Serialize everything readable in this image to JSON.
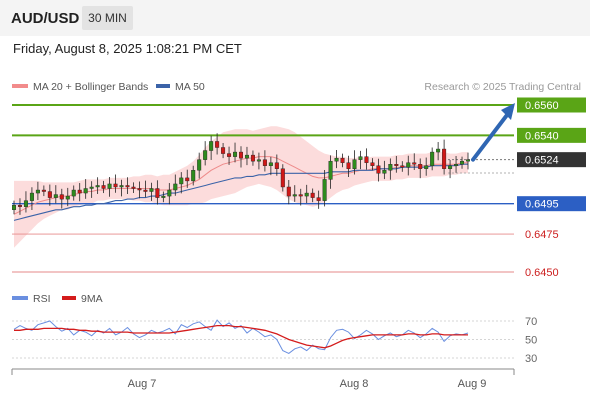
{
  "header": {
    "symbol": "AUD/USD",
    "timeframe": "30 MIN"
  },
  "datetime": "Friday, August 8, 2025 1:08:21 PM CET",
  "legend": {
    "bollinger": {
      "label": "MA 20 + Bollinger Bands",
      "color": "#f28b8b"
    },
    "ma50": {
      "label": "MA 50",
      "color": "#3b63a8"
    }
  },
  "copyright": "Research © 2025 Trading Central",
  "colors": {
    "resistance": "#5aa516",
    "support": "#2c5fc4",
    "minor_support": "#e68a8a",
    "candle_up": "#2e8b1e",
    "candle_down": "#d01818",
    "band_fill": "#fbd6d6",
    "current": "#333333",
    "arrow": "#2f66b3",
    "rsi": "#6a8fe0",
    "rsi_ma": "#d41c1c"
  },
  "chart_data": [
    {
      "type": "line",
      "subtype": "candlestick-with-levels",
      "title": "AUD/USD",
      "x_tick_labels": [
        "Aug 7",
        "Aug 8",
        "Aug 9"
      ],
      "ylim": [
        0.644,
        0.6565
      ],
      "levels": [
        {
          "value": 0.656,
          "label": "0.6560",
          "role": "resistance"
        },
        {
          "value": 0.654,
          "label": "0.6540",
          "role": "resistance"
        },
        {
          "value": 0.6524,
          "label": "0.6524",
          "role": "current"
        },
        {
          "value": 0.6495,
          "label": "0.6495",
          "role": "support"
        },
        {
          "value": 0.6475,
          "label": "0.6475",
          "role": "minor_support"
        },
        {
          "value": 0.645,
          "label": "0.6450",
          "role": "minor_support"
        }
      ],
      "close_series": [
        0.6494,
        0.6493,
        0.6497,
        0.6502,
        0.6504,
        0.6503,
        0.6499,
        0.6501,
        0.6498,
        0.65,
        0.6504,
        0.6502,
        0.6505,
        0.6506,
        0.6507,
        0.6505,
        0.6508,
        0.6506,
        0.6507,
        0.6506,
        0.6505,
        0.6504,
        0.6503,
        0.6505,
        0.6499,
        0.65,
        0.6504,
        0.6508,
        0.6512,
        0.651,
        0.6517,
        0.6524,
        0.653,
        0.6536,
        0.6532,
        0.6528,
        0.6526,
        0.6529,
        0.6525,
        0.6527,
        0.6523,
        0.6524,
        0.652,
        0.6522,
        0.6518,
        0.6506,
        0.65,
        0.6501,
        0.65,
        0.6502,
        0.6499,
        0.6497,
        0.6511,
        0.6523,
        0.6525,
        0.6522,
        0.6518,
        0.6524,
        0.6526,
        0.6522,
        0.652,
        0.6515,
        0.6517,
        0.6521,
        0.652,
        0.6519,
        0.6522,
        0.6521,
        0.6518,
        0.652,
        0.6529,
        0.6531,
        0.6518,
        0.652,
        0.6521,
        0.6523,
        0.6524
      ],
      "bollinger": {
        "ma": [
          0.6488,
          0.649,
          0.6492,
          0.6494,
          0.6496,
          0.6497,
          0.6498,
          0.6499,
          0.65,
          0.65,
          0.6501,
          0.6502,
          0.6503,
          0.6503,
          0.6504,
          0.6504,
          0.6505,
          0.6505,
          0.6505,
          0.6505,
          0.6505,
          0.6505,
          0.6505,
          0.6505,
          0.6504,
          0.6504,
          0.6504,
          0.6505,
          0.6506,
          0.6507,
          0.6509,
          0.6511,
          0.6514,
          0.6517,
          0.6519,
          0.6521,
          0.6522,
          0.6523,
          0.6524,
          0.6525,
          0.6525,
          0.6526,
          0.6526,
          0.6526,
          0.6525,
          0.6523,
          0.6521,
          0.6519,
          0.6517,
          0.6515,
          0.6513,
          0.6512,
          0.6512,
          0.6513,
          0.6514,
          0.6515,
          0.6515,
          0.6516,
          0.6517,
          0.6517,
          0.6518,
          0.6518,
          0.6518,
          0.6518,
          0.6519,
          0.6519,
          0.652,
          0.652,
          0.652,
          0.652,
          0.6521,
          0.6521,
          0.6521,
          0.6521,
          0.6521,
          0.6522,
          0.6522
        ],
        "width": [
          0.0022,
          0.002,
          0.0018,
          0.0016,
          0.0014,
          0.0012,
          0.0011,
          0.001,
          0.0009,
          0.0009,
          0.0008,
          0.0008,
          0.0008,
          0.0008,
          0.0007,
          0.0007,
          0.0007,
          0.0007,
          0.0007,
          0.0007,
          0.0008,
          0.0008,
          0.0009,
          0.0009,
          0.0009,
          0.001,
          0.001,
          0.0011,
          0.0012,
          0.0013,
          0.0014,
          0.0016,
          0.0018,
          0.0019,
          0.002,
          0.0021,
          0.0021,
          0.0021,
          0.002,
          0.0019,
          0.0018,
          0.0018,
          0.0019,
          0.002,
          0.0021,
          0.0022,
          0.0023,
          0.0023,
          0.0022,
          0.0021,
          0.002,
          0.0018,
          0.0016,
          0.0014,
          0.0012,
          0.0011,
          0.001,
          0.0009,
          0.0009,
          0.0008,
          0.0008,
          0.0008,
          0.0008,
          0.0008,
          0.0008,
          0.0008,
          0.0008,
          0.0008,
          0.0008,
          0.0008,
          0.0008,
          0.0008,
          0.0008,
          0.0007,
          0.0007,
          0.0007,
          0.0007
        ]
      },
      "ma50": [
        0.6484,
        0.6485,
        0.6486,
        0.6487,
        0.6488,
        0.6489,
        0.649,
        0.6491,
        0.6491,
        0.6492,
        0.6493,
        0.6493,
        0.6494,
        0.6494,
        0.6495,
        0.6495,
        0.6496,
        0.6497,
        0.6497,
        0.6498,
        0.6498,
        0.6499,
        0.6499,
        0.65,
        0.65,
        0.6501,
        0.6502,
        0.6502,
        0.6503,
        0.6504,
        0.6505,
        0.6506,
        0.6507,
        0.6508,
        0.6509,
        0.651,
        0.6511,
        0.6512,
        0.6512,
        0.6513,
        0.6513,
        0.6514,
        0.6514,
        0.6515,
        0.6515,
        0.6515,
        0.6515,
        0.6515,
        0.6515,
        0.6515,
        0.6515,
        0.6515,
        0.6515,
        0.6516,
        0.6516,
        0.6516,
        0.6516,
        0.6517,
        0.6517,
        0.6517,
        0.6517,
        0.6518,
        0.6518,
        0.6518,
        0.6518,
        0.6519,
        0.6519,
        0.6519,
        0.6519,
        0.6519,
        0.652,
        0.652,
        0.652,
        0.652,
        0.652,
        0.6521,
        0.6521
      ],
      "projection": {
        "from": 0.6524,
        "to": 0.656
      }
    },
    {
      "type": "line",
      "title": "RSI",
      "legend": [
        {
          "name": "RSI",
          "color": "#6a8fe0"
        },
        {
          "name": "9MA",
          "color": "#d41c1c"
        }
      ],
      "y_ticks": [
        70,
        50,
        30
      ],
      "ylim": [
        22,
        78
      ],
      "series": [
        {
          "name": "RSI",
          "values": [
            61,
            65,
            62,
            60,
            66,
            68,
            70,
            64,
            59,
            62,
            55,
            60,
            58,
            54,
            60,
            57,
            62,
            55,
            58,
            63,
            56,
            52,
            55,
            60,
            57,
            59,
            62,
            56,
            66,
            63,
            67,
            69,
            64,
            60,
            71,
            64,
            68,
            62,
            65,
            57,
            62,
            58,
            53,
            55,
            50,
            38,
            35,
            40,
            42,
            38,
            44,
            40,
            39,
            52,
            60,
            61,
            58,
            51,
            55,
            60,
            56,
            50,
            54,
            57,
            53,
            55,
            60,
            57,
            52,
            56,
            62,
            58,
            48,
            54,
            56,
            55,
            57
          ]
        },
        {
          "name": "9MA",
          "values": [
            60,
            60,
            61,
            61,
            61,
            62,
            62,
            62,
            62,
            61,
            61,
            60,
            60,
            59,
            59,
            58,
            58,
            58,
            58,
            58,
            57,
            57,
            57,
            57,
            57,
            57,
            57,
            58,
            59,
            60,
            61,
            62,
            63,
            64,
            65,
            65,
            65,
            64,
            64,
            63,
            62,
            61,
            60,
            58,
            56,
            53,
            50,
            48,
            46,
            44,
            43,
            42,
            41,
            43,
            46,
            49,
            51,
            52,
            53,
            54,
            55,
            55,
            55,
            55,
            55,
            55,
            56,
            56,
            55,
            55,
            56,
            56,
            55,
            55,
            55,
            55,
            55
          ]
        }
      ]
    }
  ]
}
